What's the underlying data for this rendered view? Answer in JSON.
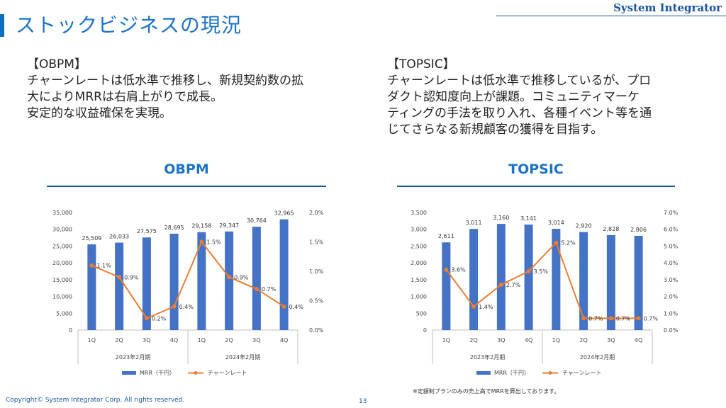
{
  "header": {
    "title": "ストックビジネスの現況",
    "brand": "System Integrator"
  },
  "left_text": {
    "heading": "【OBPM】",
    "lines": [
      "チャーンレートは低水準で推移し、新規契約数の拡",
      "大によりMRRは右肩上がりで成長。",
      "安定的な収益確保を実現。"
    ]
  },
  "right_text": {
    "heading": "【TOPSIC】",
    "lines": [
      "チャーンレートは低水準で推移しているが、プロ",
      "ダクト認知度向上が課題。コミュニティマーケ",
      "ティングの手法を取り入れ、各種イベント等を通",
      "じてさらなる新規顧客の獲得を目指す。"
    ]
  },
  "colors": {
    "bar": "#4472c4",
    "line": "#ed7d31",
    "accent": "#1b73c8"
  },
  "chart_data": [
    {
      "type": "bar",
      "title": "OBPM",
      "categories": [
        "1Q",
        "2Q",
        "3Q",
        "4Q",
        "1Q",
        "2Q",
        "3Q",
        "4Q"
      ],
      "groups": [
        "2023年2月期",
        "2024年2月期"
      ],
      "series": [
        {
          "name": "MRR（千円）",
          "type": "bar",
          "axis": "left",
          "values": [
            25509,
            26033,
            27575,
            28695,
            29158,
            29347,
            30764,
            32965
          ],
          "labels": [
            "25,509",
            "26,033",
            "27,575",
            "28,695",
            "29,158",
            "29,347",
            "30,764",
            "32,965"
          ]
        },
        {
          "name": "チャーンレート",
          "type": "line",
          "axis": "right",
          "values": [
            1.1,
            0.9,
            0.2,
            0.4,
            1.5,
            0.9,
            0.7,
            0.4
          ],
          "labels": [
            "1.1%",
            "0.9%",
            "0.2%",
            "0.4%",
            "1.5%",
            "0.9%",
            "0.7%",
            "0.4%"
          ]
        }
      ],
      "ylim": [
        0,
        35000
      ],
      "y_ticks": [
        "0",
        "5,000",
        "10,000",
        "15,000",
        "20,000",
        "25,000",
        "30,000",
        "35,000"
      ],
      "y2lim": [
        0,
        2.0
      ],
      "y2_ticks": [
        "0.0%",
        "0.5%",
        "1.0%",
        "1.5%",
        "2.0%"
      ],
      "legend_position": "bottom"
    },
    {
      "type": "bar",
      "title": "TOPSIC",
      "categories": [
        "1Q",
        "2Q",
        "3Q",
        "4Q",
        "1Q",
        "2Q",
        "3Q",
        "4Q"
      ],
      "groups": [
        "2023年2月期",
        "2024年2月期"
      ],
      "series": [
        {
          "name": "MRR（千円）",
          "type": "bar",
          "axis": "left",
          "values": [
            2611,
            3011,
            3160,
            3141,
            3014,
            2920,
            2828,
            2806
          ],
          "labels": [
            "2,611",
            "3,011",
            "3,160",
            "3,141",
            "3,014",
            "2,920",
            "2,828",
            "2,806"
          ]
        },
        {
          "name": "チャーンレート",
          "type": "line",
          "axis": "right",
          "values": [
            3.6,
            1.4,
            2.7,
            3.5,
            5.2,
            0.7,
            0.7,
            0.7
          ],
          "labels": [
            "3.6%",
            "1.4%",
            "2.7%",
            "3.5%",
            "5.2%",
            "0.7%",
            "0.7%",
            "0.7%"
          ]
        }
      ],
      "ylim": [
        0,
        3500
      ],
      "y_ticks": [
        "0",
        "500",
        "1,000",
        "1,500",
        "2,000",
        "2,500",
        "3,000",
        "3,500"
      ],
      "y2lim": [
        0,
        7.0
      ],
      "y2_ticks": [
        "0.0%",
        "1.0%",
        "2.0%",
        "3.0%",
        "4.0%",
        "5.0%",
        "6.0%",
        "7.0%"
      ],
      "legend_position": "bottom",
      "note": "※定額制プランのみの売上高でMRRを算出しております。"
    }
  ],
  "footer": {
    "copyright": "Copyright© System Integrator Corp. All rights reserved.",
    "page": "13"
  }
}
